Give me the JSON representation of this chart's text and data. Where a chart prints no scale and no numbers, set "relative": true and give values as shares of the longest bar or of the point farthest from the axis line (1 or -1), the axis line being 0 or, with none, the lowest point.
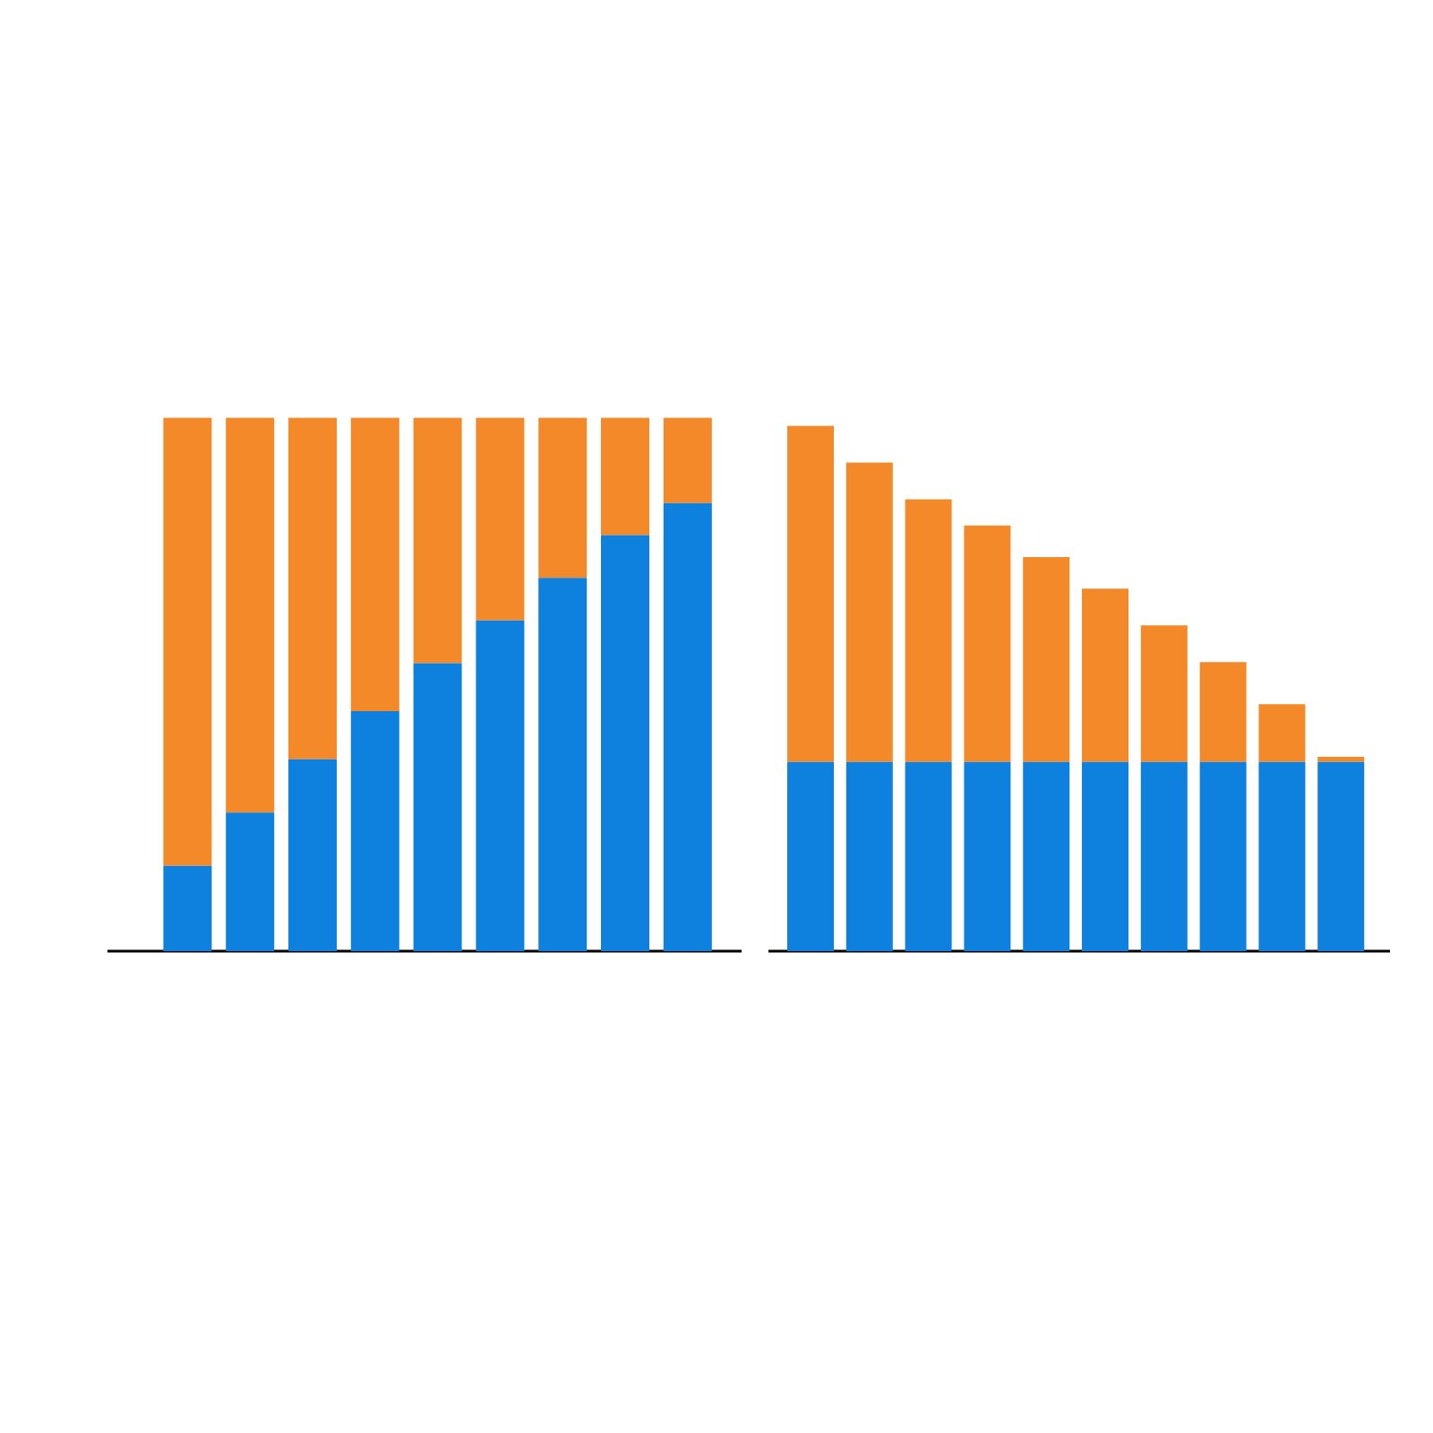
{
  "chart_data": [
    {
      "type": "bar",
      "stacked": true,
      "relative": true,
      "categories": [
        null,
        null,
        null,
        null,
        null,
        null,
        null,
        null,
        null
      ],
      "series": [
        {
          "color": "#0e80dd",
          "values": [
            0.16,
            0.26,
            0.36,
            0.45,
            0.54,
            0.62,
            0.7,
            0.78,
            0.84
          ]
        },
        {
          "color": "#f4892a",
          "values": [
            0.84,
            0.74,
            0.64,
            0.55,
            0.46,
            0.38,
            0.3,
            0.22,
            0.16
          ]
        }
      ]
    },
    {
      "type": "bar",
      "stacked": true,
      "relative": true,
      "categories": [
        null,
        null,
        null,
        null,
        null,
        null,
        null,
        null,
        null,
        null
      ],
      "series": [
        {
          "color": "#0e80dd",
          "values": [
            0.36,
            0.36,
            0.36,
            0.36,
            0.36,
            0.36,
            0.36,
            0.36,
            0.36,
            0.36
          ]
        },
        {
          "color": "#f4892a",
          "values": [
            0.64,
            0.57,
            0.5,
            0.45,
            0.39,
            0.33,
            0.26,
            0.19,
            0.11,
            0.01
          ]
        }
      ]
    }
  ]
}
